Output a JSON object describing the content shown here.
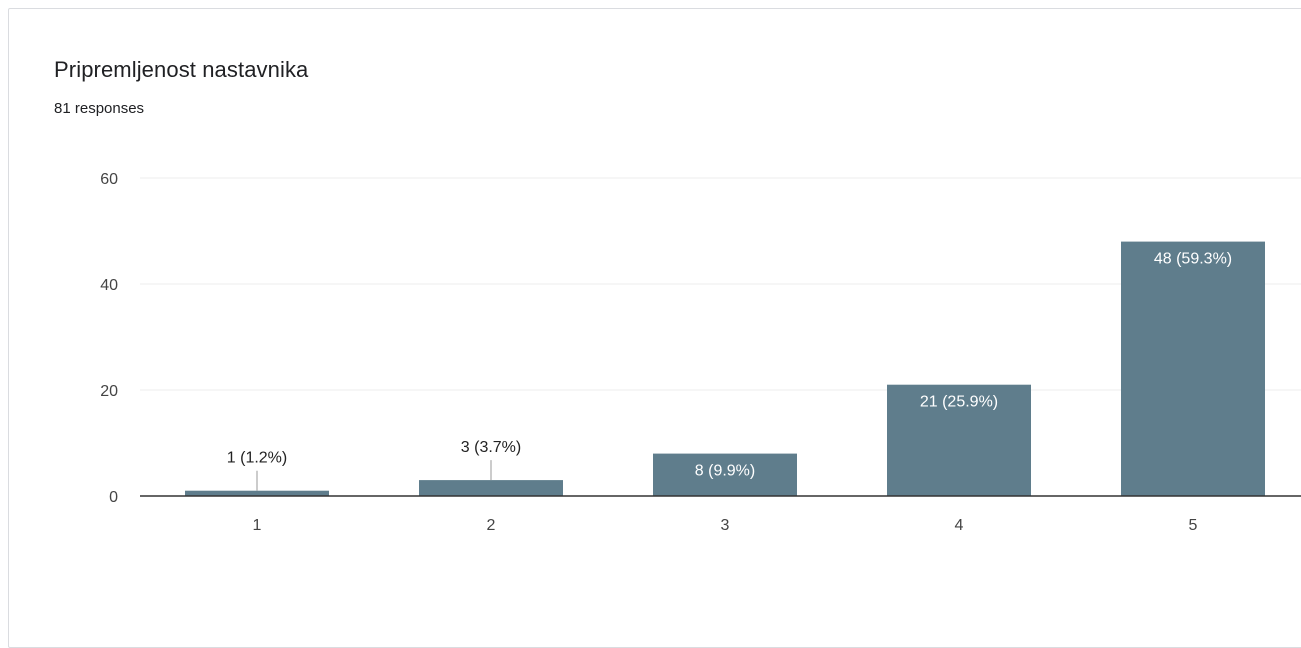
{
  "form": {
    "question_title": "Pripremljenost nastavnika",
    "responses_text": "81 responses"
  },
  "colors": {
    "bar": "#5f7d8c",
    "grid": "#eeeeee",
    "axis": "#333333",
    "label_inside": "#ffffff",
    "label_outside": "#222222"
  },
  "chart_data": {
    "type": "bar",
    "categories": [
      "1",
      "2",
      "3",
      "4",
      "5"
    ],
    "values": [
      1,
      3,
      8,
      21,
      48
    ],
    "data_labels": [
      "1 (1.2%)",
      "3 (3.7%)",
      "8 (9.9%)",
      "21 (25.9%)",
      "48 (59.3%)"
    ],
    "ylim": [
      0,
      60
    ],
    "yticks": [
      0,
      20,
      40,
      60
    ],
    "grid": true,
    "legend": "none"
  }
}
